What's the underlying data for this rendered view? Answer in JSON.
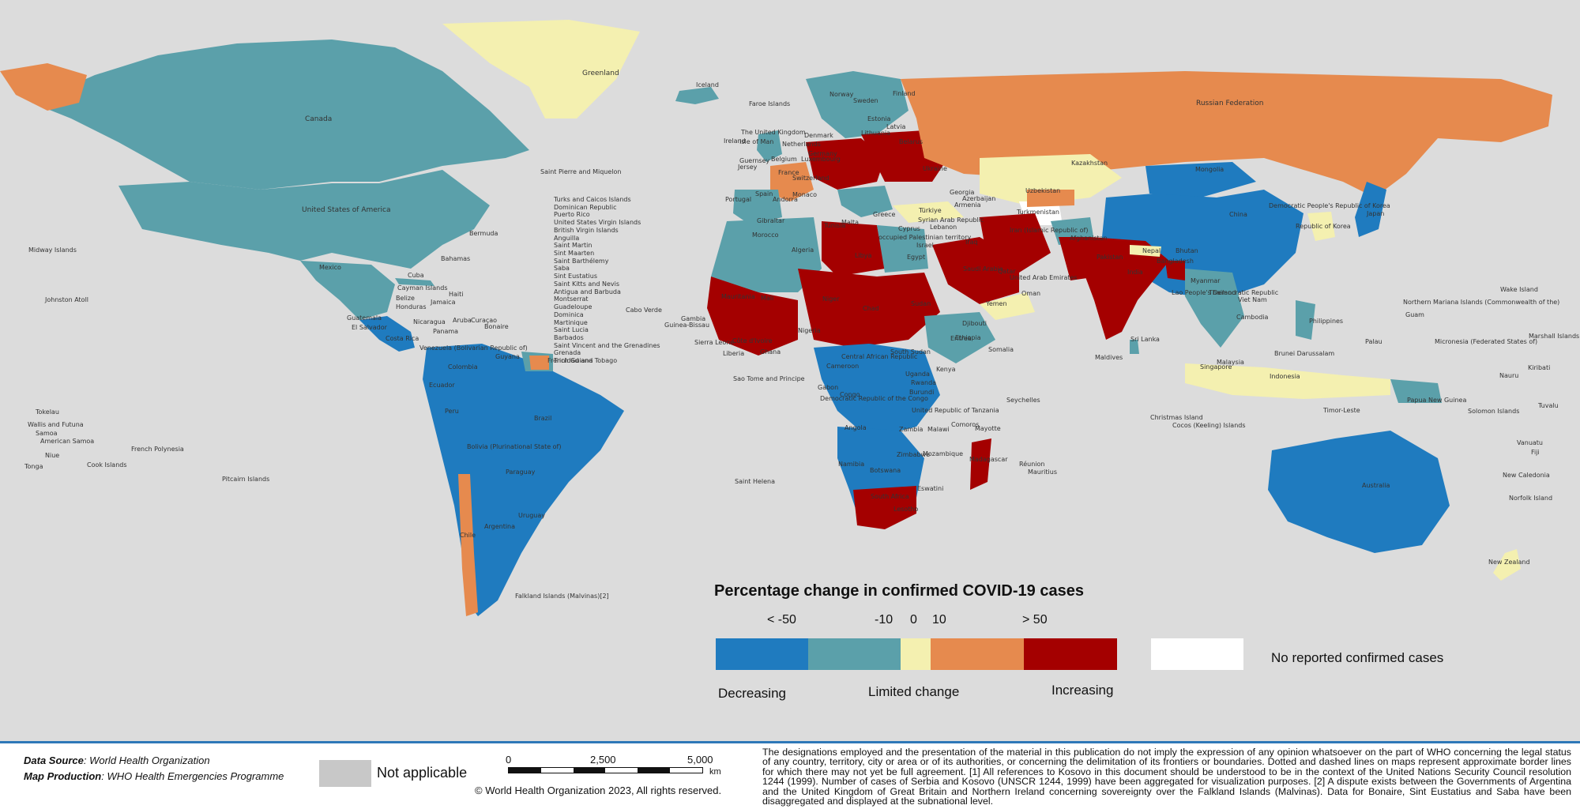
{
  "legend": {
    "title": "Percentage change in confirmed COVID-19 cases",
    "ticks": [
      "< -50",
      "-10",
      "0",
      "10",
      "> 50"
    ],
    "categories": [
      "Decreasing",
      "Limited change",
      "Increasing"
    ],
    "colors": {
      "decreasing_strong": "#1f7bbf",
      "decreasing": "#5ba0aa",
      "limited": "#f4f0b0",
      "increasing": "#e68a4e",
      "increasing_strong": "#a40000",
      "no_data": "#ffffff",
      "not_applicable": "#c8c8c8",
      "background": "#dcdcdc"
    },
    "no_data_label": "No reported confirmed cases"
  },
  "footer": {
    "data_source_label": "Data Source",
    "data_source_value": ": World Health Organization",
    "map_production_label": "Map Production",
    "map_production_value": ": WHO Health Emergencies Programme",
    "not_applicable": "Not applicable",
    "scale_0": "0",
    "scale_mid": "2,500",
    "scale_max": "5,000",
    "scale_unit": "km",
    "copyright": "© World Health Organization  2023,  All rights reserved.",
    "disclaimer": "The designations employed and the presentation of the material in this publication do not imply the expression of any opinion whatsoever on the part of WHO concerning the legal status of any country, territory, city or area or of its authorities, or concerning the delimitation of its frontiers or boundaries. Dotted and dashed lines on maps represent approximate border lines for which there may not yet be full agreement. [1] All references to Kosovo in this document should be understood to be in the context of the United Nations Security Council resolution 1244 (1999). Number of cases of Serbia and Kosovo (UNSCR 1244, 1999) have been aggregated for visualization purposes. [2] A dispute exists between the Governments of Argentina and the United Kingdom of Great Britain and Northern Ireland concerning sovereignty over the Falkland Islands (Malvinas). Data for Bonaire, Sint Eustatius and Saba have been disaggregated and displayed at the subnational level."
  },
  "labels": {
    "greenland": "Greenland",
    "iceland": "Iceland",
    "canada": "Canada",
    "usa": "United States of America",
    "russia": "Russian Federation",
    "kazakhstan": "Kazakhstan",
    "mongolia": "Mongolia",
    "china": "China",
    "mexico": "Mexico",
    "brazil": "Brazil",
    "argentina": "Argentina",
    "peru": "Peru",
    "colombia": "Colombia",
    "bolivia": "Bolivia (Plurinational State of)",
    "paraguay": "Paraguay",
    "uruguay": "Uruguay",
    "chile": "Chile",
    "ecuador": "Ecuador",
    "guyana": "Guyana",
    "venezuela": "Venezuela (Bolivarian Republic of)",
    "cuba": "Cuba",
    "bahamas": "Bahamas",
    "bermuda": "Bermuda",
    "jamaica": "Jamaica",
    "haiti": "Haiti",
    "cayman": "Cayman Islands",
    "belize": "Belize",
    "honduras": "Honduras",
    "guatemala": "Guatemala",
    "el_salvador": "El Salvador",
    "nicaragua": "Nicaragua",
    "costa_rica": "Costa Rica",
    "panama": "Panama",
    "aruba": "Aruba",
    "curacao": "Curaçao",
    "bonaire": "Bonaire",
    "french_guiana": "French Guiana",
    "midway": "Midway Islands",
    "johnston": "Johnston Atoll",
    "tokelau": "Tokelau",
    "wallis": "Wallis and Futuna",
    "samoa": "Samoa",
    "american_samoa": "American Samoa",
    "niue": "Niue",
    "tonga": "Tonga",
    "cook": "Cook Islands",
    "french_polynesia": "French Polynesia",
    "pitcairn": "Pitcairn Islands",
    "falkland": "Falkland Islands (Malvinas)[2]",
    "spm": "Saint Pierre and Miquelon",
    "cabo_verde": "Cabo Verde",
    "sao_tome": "Sao Tome and Principe",
    "saint_helena": "Saint Helena",
    "faroe": "Faroe Islands",
    "uk": "The United Kingdom",
    "ireland": "Ireland",
    "isle_of_man": "Isle of Man",
    "guernsey": "Guernsey",
    "jersey": "Jersey",
    "france": "France",
    "portugal": "Portugal",
    "spain": "Spain",
    "andorra": "Andorra",
    "gibraltar": "Gibraltar",
    "monaco": "Monaco",
    "morocco": "Morocco",
    "algeria": "Algeria",
    "tunisia": "Tunisia",
    "malta": "Malta",
    "libya": "Libya",
    "egypt": "Egypt",
    "norway": "Norway",
    "sweden": "Sweden",
    "finland": "Finland",
    "estonia": "Estonia",
    "latvia": "Latvia",
    "lithuania": "Lithuania",
    "belarus": "Belarus",
    "denmark": "Denmark",
    "netherlands": "Netherlands",
    "belgium": "Belgium",
    "luxembourg": "Luxembourg",
    "germany": "Germany",
    "switzerland": "Switzerland",
    "ukraine": "Ukraine",
    "greece": "Greece",
    "turkiye": "Türkiye",
    "cyprus": "Cyprus",
    "syria": "Syrian Arab Republic",
    "lebanon": "Lebanon",
    "israel": "Israel",
    "opt": "occupied Palestinian territory",
    "iraq": "Iraq",
    "georgia": "Georgia",
    "armenia": "Armenia",
    "azerbaijan": "Azerbaijan",
    "turkmenistan": "Turkmenistan",
    "uzbekistan": "Uzbekistan",
    "afghanistan": "Afghanistan",
    "iran": "Iran (Islamic Republic of)",
    "pakistan": "Pakistan",
    "saudi": "Saudi Arabia",
    "qatar": "Qatar",
    "uae": "United Arab Emirates",
    "oman": "Oman",
    "yemen": "Yemen",
    "india": "India",
    "nepal": "Nepal",
    "bhutan": "Bhutan",
    "bangladesh": "Bangladesh",
    "myanmar": "Myanmar",
    "sri_lanka": "Sri Lanka",
    "maldives": "Maldives",
    "lao": "Lao People's Democratic Republic",
    "thailand": "Thailand",
    "viet_nam": "Viet Nam",
    "cambodia": "Cambodia",
    "malaysia": "Malaysia",
    "singapore": "Singapore",
    "brunei": "Brunei Darussalam",
    "philippines": "Philippines",
    "indonesia": "Indonesia",
    "timor": "Timor-Leste",
    "png": "Papua New Guinea",
    "dprk": "Democratic People's Republic of Korea",
    "rok": "Republic of Korea",
    "japan": "Japan",
    "mauritania": "Mauritania",
    "mali": "Mali",
    "niger": "Niger",
    "chad": "Chad",
    "sudan": "Sudan",
    "south_sudan": "South Sudan",
    "eritrea": "Eritrea",
    "djibouti": "Djibouti",
    "ethiopia": "Ethiopia",
    "somalia": "Somalia",
    "kenya": "Kenya",
    "gambia": "Gambia",
    "guinea_bissau": "Guinea-Bissau",
    "sierra_leone": "Sierra Leone",
    "liberia": "Liberia",
    "cote": "Côte d'Ivoire",
    "ghana": "Ghana",
    "nigeria": "Nigeria",
    "car": "Central African Republic",
    "cameroon": "Cameroon",
    "gabon": "Gabon",
    "congo": "Congo",
    "drc": "Democratic Republic of the Congo",
    "uganda": "Uganda",
    "rwanda": "Rwanda",
    "burundi": "Burundi",
    "tanzania": "United Republic of Tanzania",
    "angola": "Angola",
    "zambia": "Zambia",
    "malawi": "Malawi",
    "mozambique": "Mozambique",
    "namibia": "Namibia",
    "botswana": "Botswana",
    "zimbabwe": "Zimbabwe",
    "south_africa": "South Africa",
    "eswatini": "Eswatini",
    "lesotho": "Lesotho",
    "madagascar": "Madagascar",
    "comoros": "Comoros",
    "mayotte": "Mayotte",
    "reunion": "Réunion",
    "mauritius": "Mauritius",
    "seychelles": "Seychelles",
    "christmas": "Christmas Island",
    "cocos": "Cocos (Keeling) Islands",
    "australia": "Australia",
    "new_zealand": "New Zealand",
    "new_caledonia": "New Caledonia",
    "norfolk": "Norfolk Island",
    "vanuatu": "Vanuatu",
    "fiji": "Fiji",
    "solomon": "Solomon Islands",
    "tuvalu": "Tuvalu",
    "kiribati": "Kiribati",
    "nauru": "Nauru",
    "marshall": "Marshall Islands",
    "micronesia": "Micronesia (Federated States of)",
    "palau": "Palau",
    "guam": "Guam",
    "cnmi": "Northern Mariana Islands (Commonwealth of the)",
    "wake": "Wake Island"
  },
  "caribbean_list_1": [
    "Turks and Caicos Islands",
    "Dominican Republic",
    "Puerto Rico",
    "United States Virgin Islands",
    "British Virgin Islands",
    "Anguilla",
    "Saint Martin",
    "Sint Maarten",
    "Saint Barthélemy",
    "Saba",
    "Sint Eustatius"
  ],
  "caribbean_list_2": [
    "Saint Kitts and Nevis",
    "Antigua and Barbuda",
    "Montserrat",
    "Guadeloupe",
    "Dominica",
    "Martinique",
    "Saint Lucia",
    "Barbados",
    "Saint Vincent and the Grenadines",
    "Grenada",
    "Trinidad and Tobago"
  ]
}
